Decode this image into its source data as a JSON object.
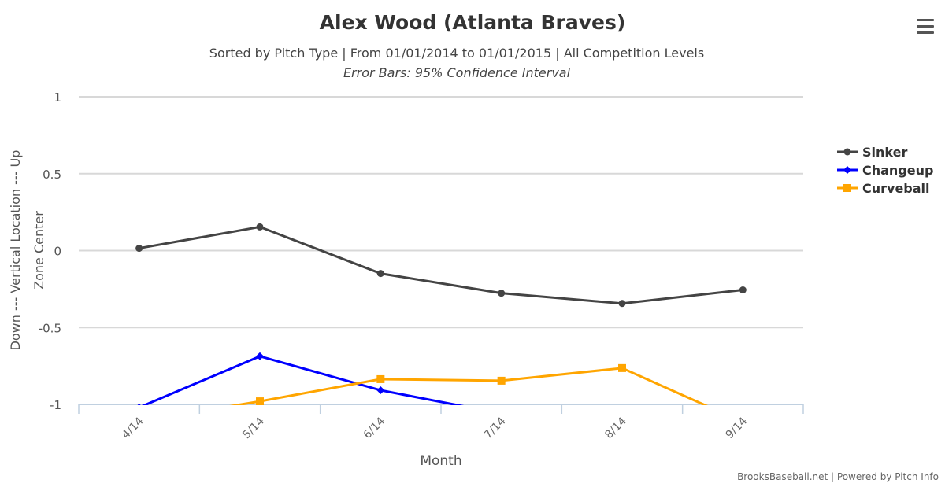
{
  "chart_data": {
    "type": "line",
    "title": "Alex Wood (Atlanta Braves)",
    "subtitle": "Sorted by Pitch Type | From 01/01/2014 to 01/01/2015 | All Competition Levels",
    "subtitle2": "Error Bars: 95% Confidence Interval",
    "xlabel": "Month",
    "ylabel_line1": "Down --- Vertical Location --- Up",
    "ylabel_line2": "Zone Center",
    "categories": [
      "4/14",
      "5/14",
      "6/14",
      "7/14",
      "8/14",
      "9/14"
    ],
    "ylim": [
      -1,
      1
    ],
    "yticks": [
      1,
      0.5,
      0,
      -0.5,
      -1
    ],
    "ytick_labels": [
      "1",
      "0.5",
      "0",
      "-0.5",
      "-1"
    ],
    "grid": true,
    "legend_placement": "right",
    "series": [
      {
        "name": "Sinker",
        "color": "#444444",
        "marker": "circle",
        "values": [
          0.015,
          0.154,
          -0.149,
          -0.277,
          -0.344,
          -0.256
        ]
      },
      {
        "name": "Changeup",
        "color": "#0000FF",
        "marker": "diamond",
        "values": [
          -1.02,
          -0.687,
          -0.908,
          -1.06,
          null,
          null
        ]
      },
      {
        "name": "Curveball",
        "color": "#FFA500",
        "marker": "square",
        "values": [
          -1.11,
          -0.98,
          -0.836,
          -0.846,
          -0.764,
          -1.115
        ]
      }
    ]
  },
  "credits": "BrooksBaseball.net | Powered by Pitch Info",
  "menu_icon": "hamburger-menu-icon"
}
